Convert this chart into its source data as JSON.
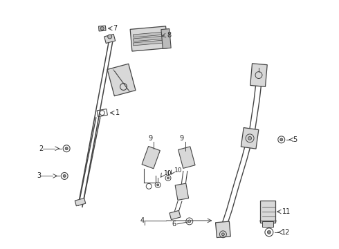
{
  "background_color": "#ffffff",
  "fig_width": 4.9,
  "fig_height": 3.6,
  "dpi": 100,
  "line_color": "#444444",
  "label_color": "#222222",
  "part_fill": "#d8d8d8",
  "part_edge": "#444444"
}
